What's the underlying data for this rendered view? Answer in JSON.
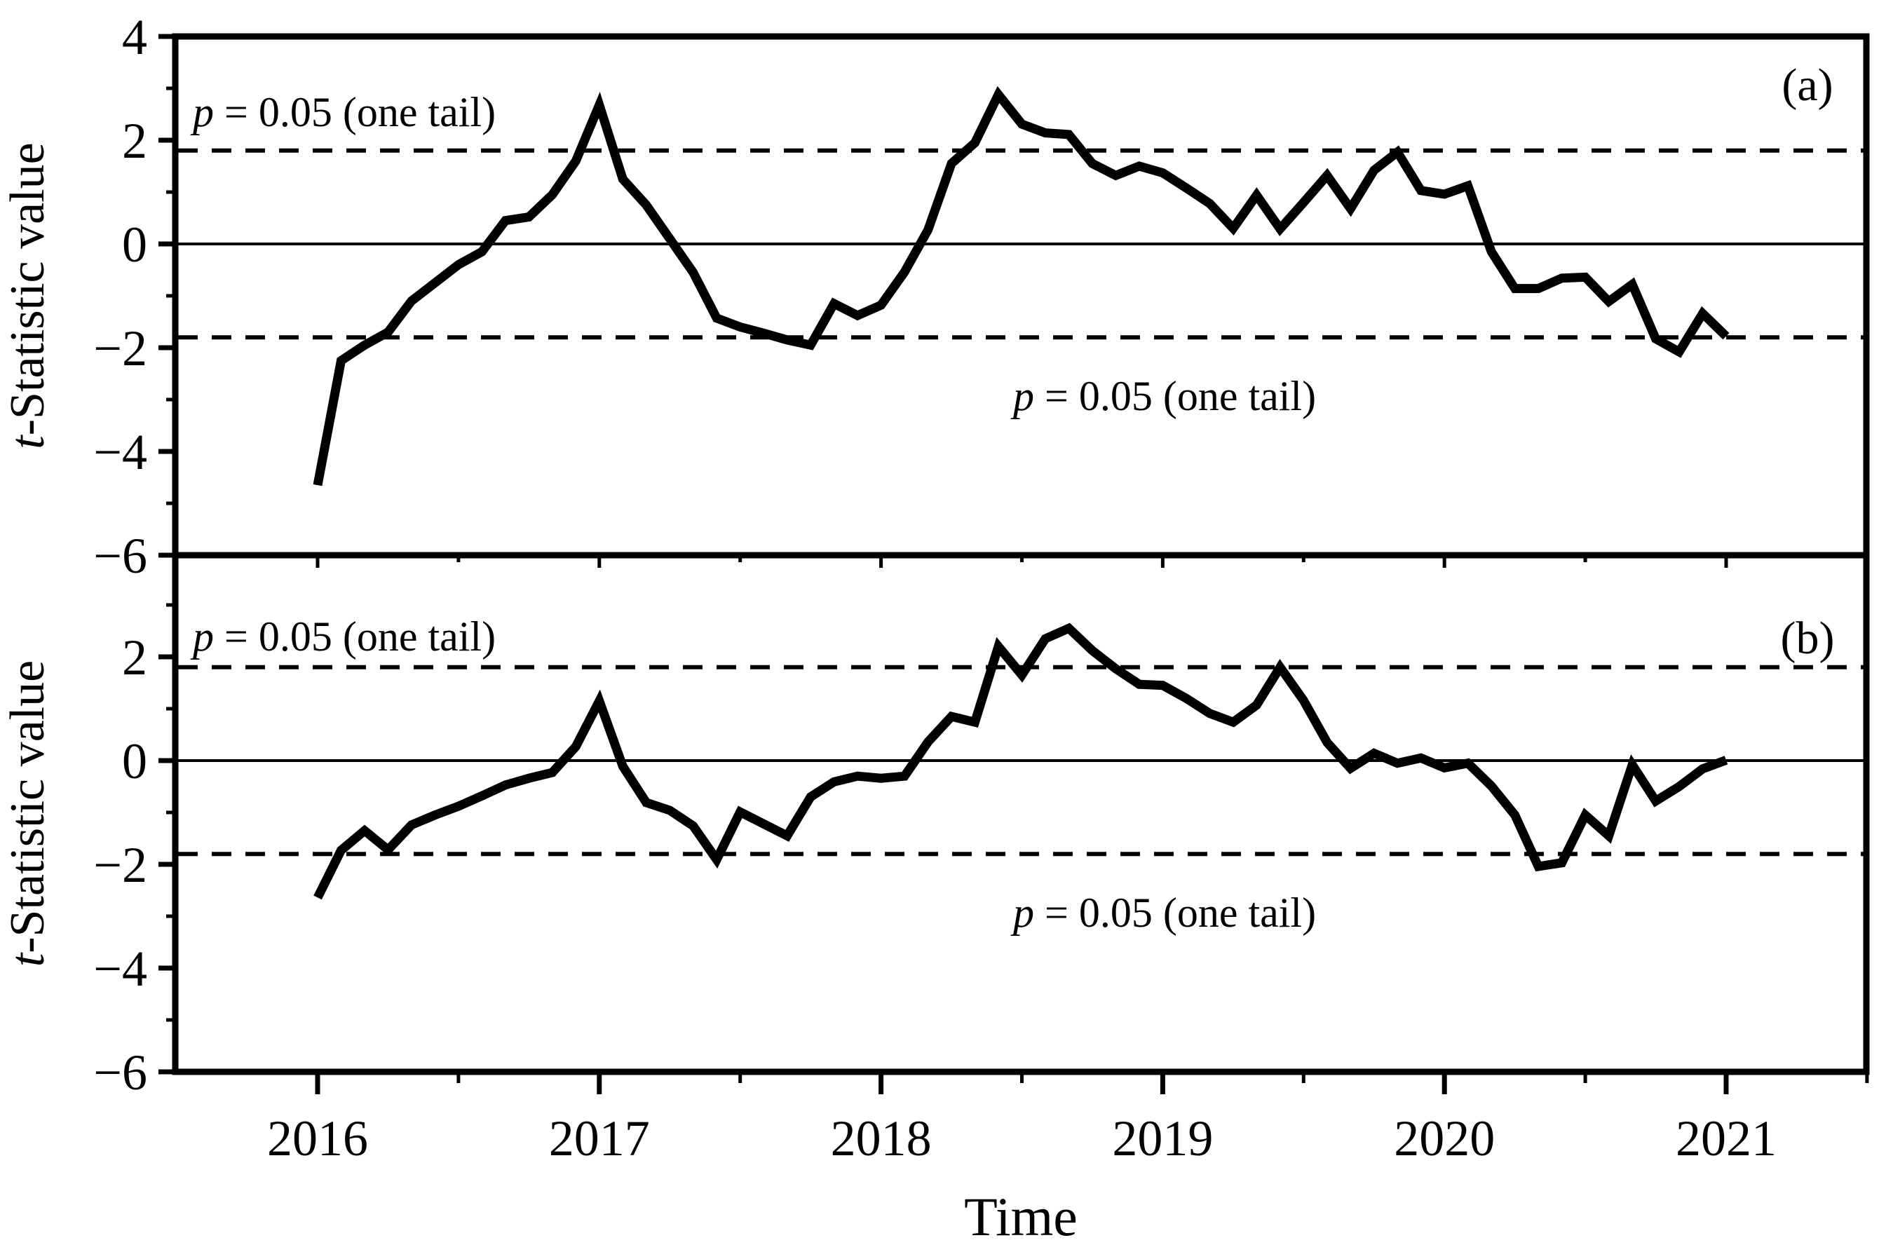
{
  "figure": {
    "background": "#ffffff",
    "ink_color": "#000000",
    "xlabel": "Time",
    "ylabel": "t-Statistic value",
    "ylabel_parts": {
      "italic": "t",
      "rest": "-Statistic value"
    }
  },
  "chart_data": [
    {
      "type": "line",
      "panel_label": "(a)",
      "xlabel": "Time",
      "ylabel": "t-Statistic value",
      "x_start": "2016-01",
      "x_end": "2021-01",
      "x_step": "1 month",
      "x_tick_labels": [
        "2016",
        "2017",
        "2018",
        "2019",
        "2020",
        "2021"
      ],
      "ylim": [
        -6,
        4
      ],
      "y_major_ticks": [
        4,
        2,
        0,
        -2,
        -4,
        -6
      ],
      "y_major_tick_labels": [
        "4",
        "2",
        "0",
        "−2",
        "−4",
        "−6"
      ],
      "y_minor_ticks": [
        3,
        1,
        -1,
        -3,
        -5
      ],
      "zero_line": 0,
      "hlines_dashed": [
        1.8,
        -1.8
      ],
      "grid": "off",
      "annotations": {
        "upper": {
          "italic": "p",
          "rest": " = 0.05 (one tail)",
          "full": "p = 0.05 (one tail)"
        },
        "lower": {
          "italic": "p",
          "rest": " = 0.05 (one tail)",
          "full": "p = 0.05 (one tail)"
        }
      },
      "series": [
        {
          "name": "t-statistic (a)",
          "values": [
            -4.65,
            -2.25,
            -1.95,
            -1.7,
            -1.1,
            -0.75,
            -0.4,
            -0.15,
            0.45,
            0.52,
            0.95,
            1.6,
            2.68,
            1.25,
            0.75,
            0.1,
            -0.55,
            -1.43,
            -1.6,
            -1.72,
            -1.85,
            -1.95,
            -1.15,
            -1.38,
            -1.18,
            -0.54,
            0.27,
            1.55,
            1.95,
            2.88,
            2.31,
            2.14,
            2.11,
            1.55,
            1.32,
            1.5,
            1.37,
            1.08,
            0.78,
            0.3,
            0.94,
            0.29,
            0.8,
            1.32,
            0.68,
            1.42,
            1.77,
            1.03,
            0.96,
            1.12,
            -0.15,
            -0.86,
            -0.86,
            -0.66,
            -0.64,
            -1.11,
            -0.78,
            -1.83,
            -2.08,
            -1.34,
            -1.78
          ]
        }
      ]
    },
    {
      "type": "line",
      "panel_label": "(b)",
      "xlabel": "Time",
      "ylabel": "t-Statistic value",
      "x_start": "2016-01",
      "x_end": "2021-01",
      "x_step": "1 month",
      "x_tick_labels": [
        "2016",
        "2017",
        "2018",
        "2019",
        "2020",
        "2021"
      ],
      "ylim": [
        -6,
        3.96
      ],
      "y_major_ticks": [
        2,
        0,
        -2,
        -4,
        -6
      ],
      "y_major_tick_labels": [
        "2",
        "0",
        "−2",
        "−4",
        "−6"
      ],
      "y_minor_ticks": [
        3,
        1,
        -1,
        -3,
        -5
      ],
      "zero_line": 0,
      "hlines_dashed": [
        1.8,
        -1.8
      ],
      "grid": "off",
      "annotations": {
        "upper": {
          "italic": "p",
          "rest": " = 0.05 (one tail)",
          "full": "p = 0.05 (one tail)"
        },
        "lower": {
          "italic": "p",
          "rest": " = 0.05 (one tail)",
          "full": "p = 0.05 (one tail)"
        }
      },
      "series": [
        {
          "name": "t-statistic (b)",
          "values": [
            -2.64,
            -1.73,
            -1.35,
            -1.72,
            -1.24,
            -1.05,
            -0.88,
            -0.68,
            -0.47,
            -0.34,
            -0.23,
            0.27,
            1.15,
            -0.11,
            -0.81,
            -0.96,
            -1.26,
            -1.91,
            -0.99,
            -1.22,
            -1.45,
            -0.7,
            -0.41,
            -0.3,
            -0.34,
            -0.3,
            0.36,
            0.85,
            0.74,
            2.2,
            1.65,
            2.35,
            2.55,
            2.12,
            1.77,
            1.47,
            1.45,
            1.2,
            0.91,
            0.74,
            1.07,
            1.8,
            1.16,
            0.35,
            -0.15,
            0.14,
            -0.05,
            0.05,
            -0.14,
            -0.05,
            -0.49,
            -1.05,
            -2.04,
            -1.97,
            -1.05,
            -1.45,
            -0.08,
            -0.78,
            -0.5,
            -0.16,
            0.01
          ]
        }
      ]
    }
  ]
}
